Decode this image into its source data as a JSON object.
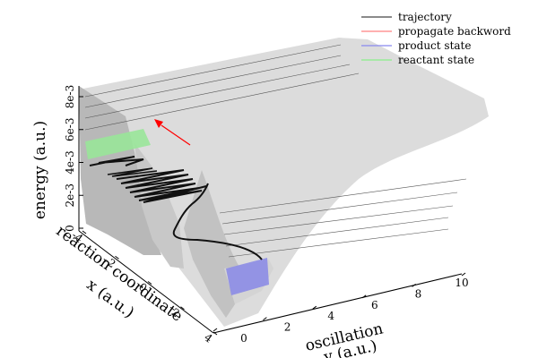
{
  "chart_data": {
    "type": "surface3d",
    "xlabel": "reaction coordinate\nx (a.u.)",
    "ylabel": "oscillation\ny (a.u.)",
    "zlabel": "energy (a.u.)",
    "x_ticks": [
      "-4",
      "-2",
      "0",
      "2",
      "4"
    ],
    "y_ticks": [
      "0",
      "2",
      "4",
      "6",
      "8",
      "10"
    ],
    "z_ticks": [
      "0",
      "2e-3",
      "4e-3",
      "6e-3",
      "8e-3"
    ],
    "xlim": [
      -4,
      4
    ],
    "ylim": [
      0,
      10
    ],
    "zlim": [
      0,
      0.008
    ],
    "legend_position": "top-right",
    "legend": [
      {
        "name": "trajectory",
        "color": "#444444"
      },
      {
        "name": "propagate backword",
        "color": "#ff8080"
      },
      {
        "name": "product state",
        "color": "#8888ee"
      },
      {
        "name": "reactant state",
        "color": "#88ee88"
      }
    ],
    "colors": {
      "surface_front": "#d9d9d9",
      "surface_back": "#bdbdbd",
      "trajectory": "#111111",
      "arrow": "#ff0000",
      "product_band": "#8c8ce6",
      "reactant_band": "#99e699"
    }
  }
}
